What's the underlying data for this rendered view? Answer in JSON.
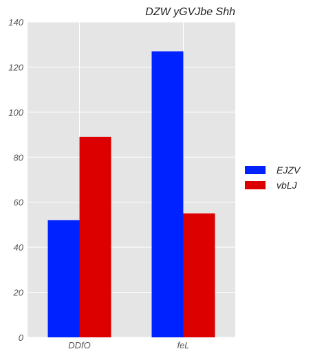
{
  "chart_data": {
    "type": "bar",
    "title": "DZW yGVJbe Shh",
    "xlabel": "",
    "ylabel": "",
    "categories": [
      "DDfO",
      "feL"
    ],
    "series": [
      {
        "name": "EJZV",
        "values": [
          52,
          127
        ],
        "color": "#0022ff"
      },
      {
        "name": "vbLJ",
        "values": [
          89,
          55
        ],
        "color": "#dd0000"
      }
    ],
    "ylim": [
      0,
      140
    ],
    "yticks": [
      0,
      20,
      40,
      60,
      80,
      100,
      120,
      140
    ],
    "grid": true,
    "background": "#e5e5e5",
    "legend_position": "right"
  }
}
